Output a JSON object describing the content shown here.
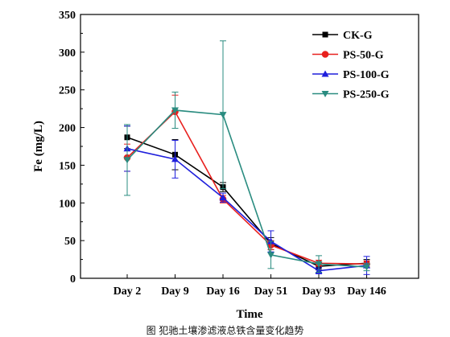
{
  "chart_data": {
    "type": "line",
    "title": "",
    "xlabel": "Time",
    "ylabel": "Fe (mg/L)",
    "categories": [
      "Day 2",
      "Day 9",
      "Day 16",
      "Day 51",
      "Day 93",
      "Day 146"
    ],
    "ylim": [
      0,
      350
    ],
    "yticks": [
      0,
      50,
      100,
      150,
      200,
      250,
      300,
      350
    ],
    "grid": false,
    "legend_position": "top-right",
    "series": [
      {
        "name": "CK-G",
        "color": "#000000",
        "marker": "square",
        "values": [
          187,
          164,
          121,
          46,
          16,
          20
        ],
        "errors": [
          15,
          20,
          6,
          8,
          5,
          5
        ]
      },
      {
        "name": "PS-50-G",
        "color": "#e8201e",
        "marker": "circle",
        "values": [
          160,
          221,
          105,
          44,
          20,
          19
        ],
        "errors": [
          18,
          22,
          5,
          6,
          4,
          4
        ]
      },
      {
        "name": "PS-100-G",
        "color": "#1f1fdc",
        "marker": "triangle-up",
        "values": [
          172,
          158,
          107,
          49,
          10,
          17
        ],
        "errors": [
          30,
          25,
          6,
          14,
          4,
          12
        ]
      },
      {
        "name": "PS-250-G",
        "color": "#2a8c80",
        "marker": "triangle-down",
        "values": [
          157,
          223,
          217,
          31,
          19,
          15
        ],
        "errors": [
          47,
          24,
          98,
          18,
          11,
          5
        ]
      }
    ]
  },
  "caption": "图  犯驰土壤渗滤液总铁含量变化趋势"
}
